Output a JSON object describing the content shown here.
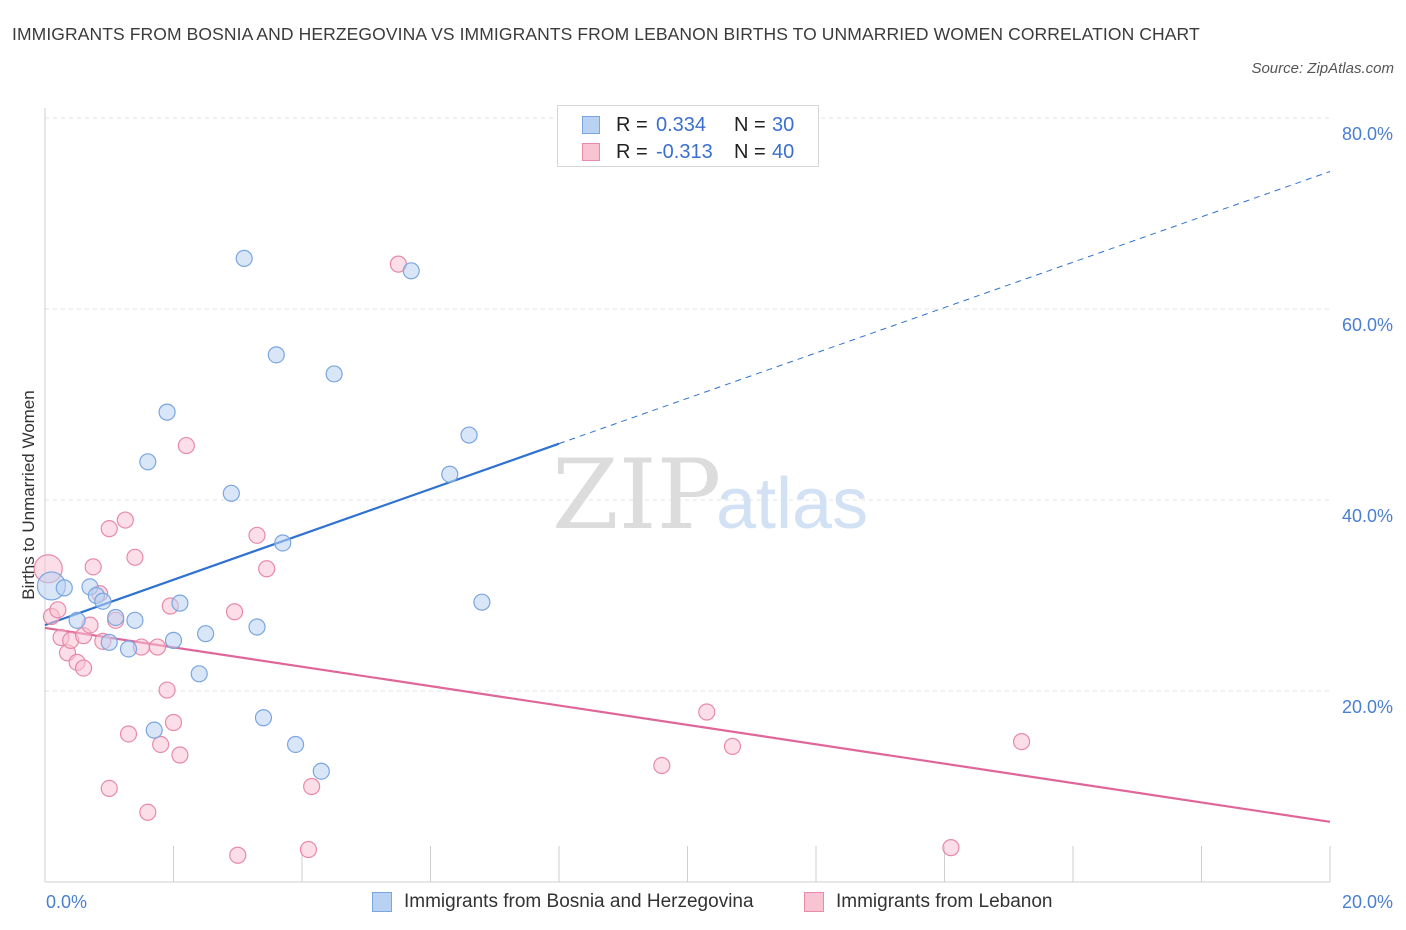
{
  "title": "IMMIGRANTS FROM BOSNIA AND HERZEGOVINA VS IMMIGRANTS FROM LEBANON BIRTHS TO UNMARRIED WOMEN CORRELATION CHART",
  "source": "Source: ZipAtlas.com",
  "watermark": {
    "zip": "ZIP",
    "atlas": "atlas"
  },
  "legend": {
    "rows": [
      {
        "r_label": "R =",
        "r_value": "0.334",
        "n_label": "N =",
        "n_value": "30"
      },
      {
        "r_label": "R =",
        "r_value": "-0.313",
        "n_label": "N =",
        "n_value": "40"
      }
    ]
  },
  "colors": {
    "blue_fill": "#b9d2f3",
    "blue_stroke": "#7aa6e0",
    "blue_line": "#2f72d0",
    "pink_fill": "#f8c3d3",
    "pink_stroke": "#e88aa8",
    "pink_line": "#e0669a",
    "grid": "#e3e3e3",
    "tick_text": "#4a7fd0"
  },
  "chart_data": {
    "type": "scatter",
    "title": "IMMIGRANTS FROM BOSNIA AND HERZEGOVINA VS IMMIGRANTS FROM LEBANON BIRTHS TO UNMARRIED WOMEN CORRELATION CHART",
    "xlabel": "",
    "ylabel": "Births to Unmarried Women",
    "xlim": [
      0,
      20
    ],
    "ylim": [
      0,
      80
    ],
    "x_tick_labels": [
      "0.0%",
      "20.0%"
    ],
    "y_ticks": [
      20,
      40,
      60,
      80
    ],
    "y_tick_labels": [
      "20.0%",
      "40.0%",
      "60.0%",
      "80.0%"
    ],
    "grid": true,
    "legend_position": "top-center",
    "series": [
      {
        "name": "Immigrants from Bosnia and Herzegovina",
        "color": "#b9d2f3",
        "points": [
          [
            0.1,
            31.0
          ],
          [
            0.3,
            30.8
          ],
          [
            0.5,
            27.4
          ],
          [
            0.7,
            30.9
          ],
          [
            0.8,
            30.0
          ],
          [
            0.9,
            29.4
          ],
          [
            1.0,
            25.1
          ],
          [
            1.1,
            27.7
          ],
          [
            1.3,
            24.4
          ],
          [
            1.4,
            27.4
          ],
          [
            1.6,
            44.0
          ],
          [
            1.7,
            15.9
          ],
          [
            1.9,
            49.2
          ],
          [
            2.0,
            25.3
          ],
          [
            2.1,
            29.2
          ],
          [
            2.4,
            21.8
          ],
          [
            2.5,
            26.0
          ],
          [
            2.9,
            40.7
          ],
          [
            3.1,
            65.3
          ],
          [
            3.3,
            26.7
          ],
          [
            3.4,
            17.2
          ],
          [
            3.6,
            55.2
          ],
          [
            3.7,
            35.5
          ],
          [
            3.9,
            14.4
          ],
          [
            4.3,
            11.6
          ],
          [
            4.5,
            53.2
          ],
          [
            5.7,
            64.0
          ],
          [
            6.3,
            42.7
          ],
          [
            6.6,
            46.8
          ],
          [
            6.8,
            29.3
          ]
        ],
        "trend": {
          "x": [
            0,
            20
          ],
          "y": [
            26.9,
            74.4
          ],
          "solid_until_x": 8.0
        }
      },
      {
        "name": "Immigrants from Lebanon",
        "color": "#f8c3d3",
        "points": [
          [
            0.05,
            32.8
          ],
          [
            0.1,
            27.8
          ],
          [
            0.2,
            28.5
          ],
          [
            0.25,
            25.6
          ],
          [
            0.35,
            24.0
          ],
          [
            0.4,
            25.3
          ],
          [
            0.5,
            23.0
          ],
          [
            0.6,
            25.8
          ],
          [
            0.6,
            22.4
          ],
          [
            0.7,
            26.9
          ],
          [
            0.75,
            33.0
          ],
          [
            0.85,
            30.2
          ],
          [
            0.9,
            25.2
          ],
          [
            1.0,
            37.0
          ],
          [
            1.0,
            9.8
          ],
          [
            1.1,
            27.4
          ],
          [
            1.25,
            37.9
          ],
          [
            1.3,
            15.5
          ],
          [
            1.4,
            34.0
          ],
          [
            1.5,
            24.6
          ],
          [
            1.6,
            7.3
          ],
          [
            1.75,
            24.6
          ],
          [
            1.8,
            14.4
          ],
          [
            1.9,
            20.1
          ],
          [
            1.95,
            28.9
          ],
          [
            2.0,
            16.7
          ],
          [
            2.1,
            13.3
          ],
          [
            2.2,
            45.7
          ],
          [
            2.95,
            28.3
          ],
          [
            3.0,
            2.8
          ],
          [
            3.3,
            36.3
          ],
          [
            3.45,
            32.8
          ],
          [
            4.1,
            3.4
          ],
          [
            4.15,
            10.0
          ],
          [
            5.5,
            64.7
          ],
          [
            9.6,
            12.2
          ],
          [
            10.3,
            17.8
          ],
          [
            10.7,
            14.2
          ],
          [
            14.1,
            3.6
          ],
          [
            15.2,
            14.7
          ]
        ],
        "trend": {
          "x": [
            0,
            20
          ],
          "y": [
            26.6,
            6.3
          ]
        }
      }
    ]
  }
}
